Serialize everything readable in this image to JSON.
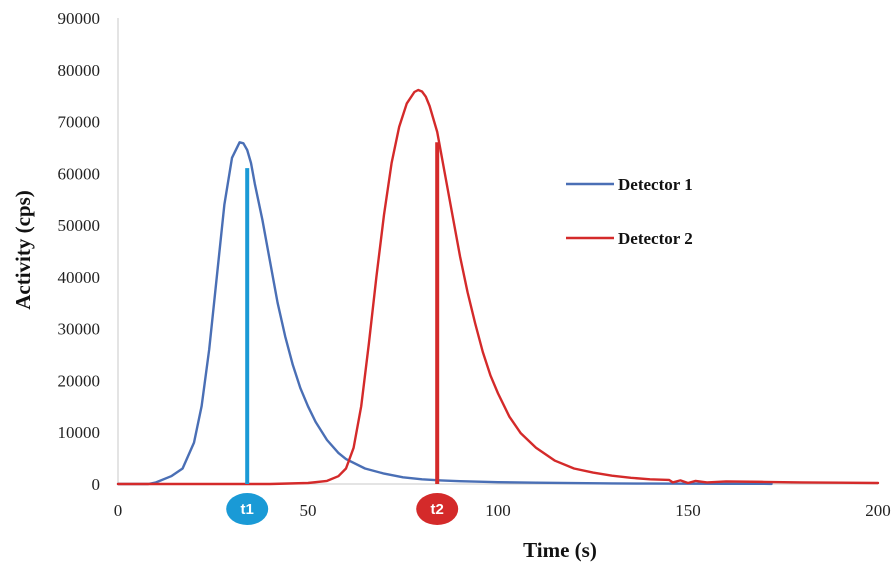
{
  "chart_data": {
    "type": "line",
    "xlabel": "Time (s)",
    "ylabel": "Activity (cps)",
    "xlim": [
      0,
      200
    ],
    "ylim": [
      0,
      90000
    ],
    "x_ticks": [
      0,
      50,
      100,
      150,
      200
    ],
    "y_ticks": [
      0,
      10000,
      20000,
      30000,
      40000,
      50000,
      60000,
      70000,
      80000,
      90000
    ],
    "grid": false,
    "legend_position": "right",
    "series": [
      {
        "name": "Detector 1",
        "color": "#4a6fb5",
        "x": [
          0,
          8,
          10,
          14,
          17,
          20,
          22,
          24,
          26,
          28,
          30,
          32,
          33,
          34,
          35,
          36,
          38,
          40,
          42,
          44,
          46,
          48,
          50,
          52,
          55,
          58,
          60,
          65,
          70,
          75,
          80,
          85,
          90,
          95,
          100,
          110,
          120,
          130,
          140,
          150,
          160,
          170,
          172
        ],
        "y": [
          0,
          0,
          300,
          1500,
          3000,
          8000,
          15000,
          26000,
          40000,
          54000,
          63000,
          66000,
          65800,
          64500,
          62000,
          58000,
          51000,
          43000,
          35000,
          28500,
          23000,
          18500,
          15000,
          12000,
          8500,
          6000,
          4800,
          3000,
          2000,
          1300,
          900,
          700,
          550,
          450,
          350,
          250,
          180,
          120,
          80,
          60,
          40,
          30,
          20
        ]
      },
      {
        "name": "Detector 2",
        "color": "#d42a2a",
        "x": [
          0,
          40,
          50,
          55,
          58,
          60,
          62,
          64,
          66,
          68,
          70,
          72,
          74,
          76,
          78,
          79,
          80,
          81,
          82,
          84,
          86,
          88,
          90,
          92,
          94,
          96,
          98,
          100,
          103,
          106,
          110,
          115,
          120,
          125,
          130,
          135,
          140,
          145,
          146,
          148,
          150,
          152,
          155,
          160,
          170,
          180,
          190,
          200
        ],
        "y": [
          0,
          0,
          200,
          600,
          1500,
          3000,
          7000,
          15000,
          27000,
          40000,
          52000,
          62000,
          69000,
          73500,
          75700,
          76100,
          75800,
          74800,
          73000,
          68000,
          60000,
          52000,
          44000,
          37000,
          31000,
          25500,
          21000,
          17500,
          13000,
          9800,
          7000,
          4500,
          3000,
          2200,
          1600,
          1200,
          900,
          800,
          300,
          700,
          200,
          600,
          300,
          500,
          400,
          300,
          250,
          200
        ]
      }
    ],
    "markers": [
      {
        "label": "t1",
        "x": 34,
        "y": 61000,
        "color": "#1a9ad6"
      },
      {
        "label": "t2",
        "x": 84,
        "y": 66000,
        "color": "#d42a2a"
      }
    ]
  }
}
